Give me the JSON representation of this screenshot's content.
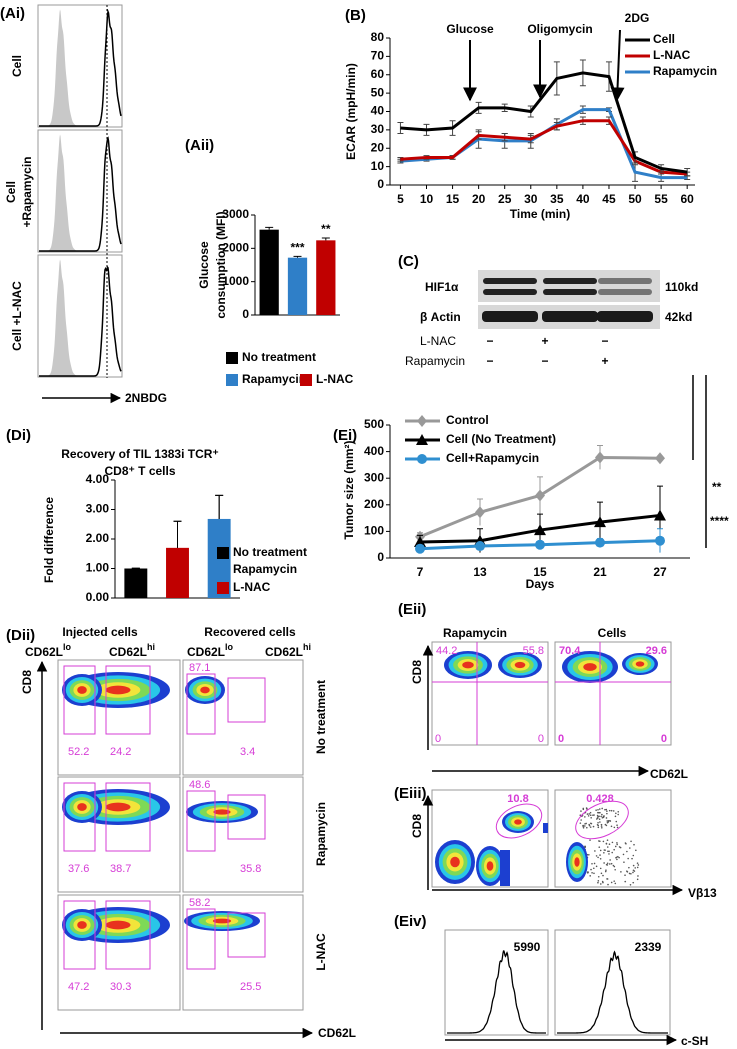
{
  "panel_labels": [
    "(Ai)",
    "(Aii)",
    "(B)",
    "(C)",
    "(Di)",
    "(Dii)",
    "(Ei)",
    "(Eii)",
    "(Eiii)",
    "(Eiv)"
  ],
  "chart_data": [
    {
      "type": "bar",
      "y_label": [
        "Glucose",
        "consumption (MFI)"
      ],
      "categories": [
        "No treatment",
        "Rapamycin",
        "L-NAC"
      ],
      "values": [
        2560,
        1720,
        2240
      ],
      "errors": [
        70,
        40,
        70
      ],
      "colors": [
        "#000000",
        "#2f7fc8",
        "#c00000"
      ],
      "ylim": [
        0,
        3000
      ],
      "yticks": [
        0,
        1000,
        2000,
        3000
      ],
      "annotations": [
        null,
        "***",
        "**"
      ]
    },
    {
      "type": "line",
      "y_label": "ECAR (mpH/min)",
      "x_label": "Time (min)",
      "x": [
        5,
        10,
        15,
        20,
        25,
        30,
        35,
        40,
        45,
        50,
        55,
        60
      ],
      "xlim": [
        3,
        61.5
      ],
      "xticks": [
        5,
        10,
        15,
        20,
        25,
        30,
        35,
        40,
        45,
        50,
        55,
        60
      ],
      "ylim": [
        0,
        80
      ],
      "yticks": [
        0,
        10,
        20,
        30,
        40,
        50,
        60,
        70,
        80
      ],
      "legend": "upper right",
      "series": [
        {
          "name": "Cell",
          "color": "#000000",
          "values": [
            31,
            30,
            31,
            42,
            42,
            40,
            58,
            61,
            59,
            15,
            9,
            7
          ],
          "errors": [
            3,
            3,
            4,
            3,
            2,
            3,
            9,
            7,
            8,
            3,
            2,
            2
          ]
        },
        {
          "name": "L-NAC",
          "color": "#c00000",
          "values": [
            14,
            15,
            15,
            27,
            26,
            25,
            32,
            35,
            35,
            13,
            7,
            6
          ],
          "errors": [
            1,
            1,
            1,
            2,
            2,
            2,
            2,
            2,
            2,
            2,
            1,
            1
          ]
        },
        {
          "name": "Rapamycin",
          "color": "#2f7fc8",
          "values": [
            13,
            14,
            15,
            25,
            24,
            24,
            33,
            41,
            41,
            7,
            4,
            4
          ],
          "errors": [
            1,
            1,
            1,
            5,
            4,
            4,
            3,
            2,
            1,
            5,
            2,
            1
          ]
        }
      ],
      "annotations": [
        "Glucose",
        "Oligomycin",
        "2DG"
      ]
    },
    {
      "type": "bar",
      "title": [
        "Recovery of TIL 1383i TCR⁺",
        "CD8⁺ T cells"
      ],
      "y_label": "Fold difference",
      "categories": [
        "No treatment",
        "Rapamycin",
        "L-NAC"
      ],
      "values": [
        1.0,
        2.68,
        1.7
      ],
      "errors": [
        0.01,
        0.8,
        0.9
      ],
      "colors": [
        "#000000",
        "#2f7fc8",
        "#c00000"
      ],
      "ylim": [
        0,
        4
      ],
      "yticks": [
        {
          "value": 0,
          "label": "0.00"
        },
        {
          "value": 1,
          "label": "1.00"
        },
        {
          "value": 2,
          "label": "2.00"
        },
        {
          "value": 3,
          "label": "3.00"
        },
        {
          "value": 4,
          "label": "4.00"
        }
      ]
    },
    {
      "type": "line",
      "y_label": "Tumor size (mm²)",
      "x_label": "Days",
      "categories": [
        "7",
        "13",
        "15",
        "21",
        "27"
      ],
      "ylim": [
        0,
        500
      ],
      "yticks": [
        0,
        100,
        200,
        300,
        400,
        500
      ],
      "legend": "upper left",
      "series": [
        {
          "name": "Control",
          "color": "#999999",
          "marker": "diamond",
          "values": [
            80,
            172,
            235,
            378,
            375
          ],
          "errors": [
            15,
            50,
            70,
            45,
            5
          ]
        },
        {
          "name": "Cell (No Treatment)",
          "color": "#000000",
          "marker": "triangle",
          "values": [
            60,
            65,
            105,
            135,
            160
          ],
          "errors": [
            25,
            45,
            60,
            75,
            110
          ]
        },
        {
          "name": "Cell+Rapamycin",
          "color": "#2f8fd0",
          "marker": "circle",
          "values": [
            35,
            45,
            50,
            58,
            65
          ],
          "errors": [
            10,
            10,
            10,
            15,
            45
          ]
        }
      ],
      "annotations": [
        "**",
        "****"
      ]
    }
  ],
  "ai": {
    "rows": [
      [
        "Cell"
      ],
      [
        "Cell",
        "+Rapamycin"
      ],
      [
        "Cell +L-NAC"
      ]
    ],
    "x_label": "2NBDG"
  },
  "c": {
    "rows": [
      "HIF1α",
      "β Actin"
    ],
    "sizes": [
      "110kd",
      "42kd"
    ],
    "treatments": [
      {
        "name": "L-NAC",
        "signs": [
          "−",
          "+",
          "−"
        ]
      },
      {
        "name": "Rapamycin",
        "signs": [
          "−",
          "−",
          "+"
        ]
      }
    ]
  },
  "dii": {
    "headers": [
      "Injected cells",
      "Recovered cells"
    ],
    "gates": [
      {
        "text": "CD62L",
        "sup": "lo"
      },
      {
        "text": "CD62L",
        "sup": "hi"
      }
    ],
    "rows": [
      {
        "name": "No treatment",
        "injected": [
          52.2,
          24.2
        ],
        "recovered": [
          87.1,
          3.4
        ]
      },
      {
        "name": "Rapamycin",
        "injected": [
          37.6,
          38.7
        ],
        "recovered": [
          48.6,
          35.8
        ]
      },
      {
        "name": "L-NAC",
        "injected": [
          47.2,
          30.3
        ],
        "recovered": [
          58.2,
          25.5
        ]
      }
    ],
    "y_label": "CD8",
    "x_label": "CD62L"
  },
  "eii": {
    "columns": [
      "Rapamycin",
      "Cells"
    ],
    "quadrants": [
      [
        44.2,
        55.8,
        0,
        0
      ],
      [
        70.4,
        29.6,
        0,
        0
      ]
    ],
    "y_label": "CD8",
    "x_label": "CD62L"
  },
  "eiii": {
    "gates": [
      10.8,
      0.428
    ],
    "y_label": "CD8",
    "x_label": "Vβ13"
  },
  "eiv": {
    "mfi": [
      5990,
      2339
    ],
    "x_label": "c-SH"
  }
}
